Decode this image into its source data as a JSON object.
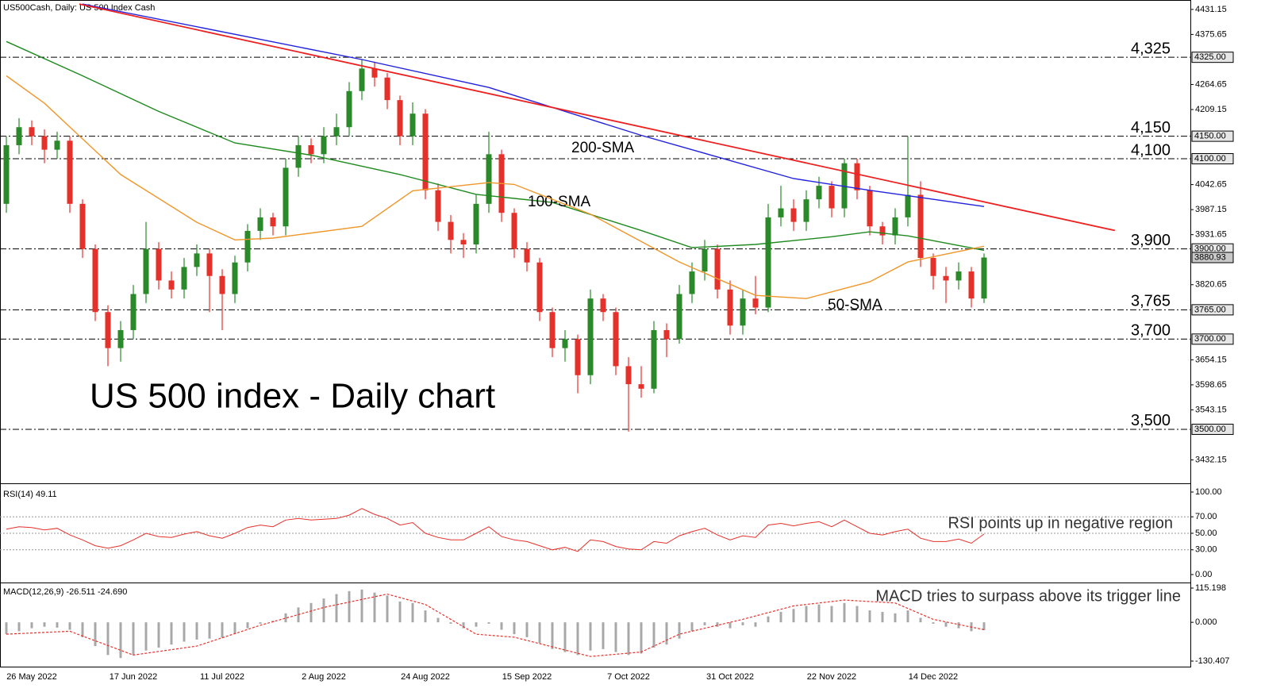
{
  "chart_data": [
    {
      "type": "candlestick",
      "title": "US500Cash, Daily:  US 500 Index Cash",
      "annotation": "US 500 index - Daily chart",
      "categories": [
        null,
        null,
        "26 May 2022",
        null,
        null,
        null,
        null,
        null,
        null,
        null,
        "17 Jun 2022",
        null,
        null,
        null,
        null,
        null,
        null,
        "11 Jul 2022",
        null,
        null,
        null,
        null,
        null,
        null,
        null,
        "2 Aug 2022",
        null,
        null,
        null,
        null,
        null,
        null,
        null,
        "24 Aug 2022",
        null,
        null,
        null,
        null,
        null,
        null,
        null,
        "15 Sep 2022",
        null,
        null,
        null,
        null,
        null,
        null,
        null,
        "7 Oct 2022",
        null,
        null,
        null,
        null,
        null,
        null,
        null,
        "31 Oct 2022",
        null,
        null,
        null,
        null,
        null,
        null,
        null,
        "22 Nov 2022",
        null,
        null,
        null,
        null,
        null,
        null,
        null,
        "14 Dec 2022",
        null,
        null,
        null,
        null
      ],
      "open": [
        4000,
        4130,
        4170,
        4150,
        4120,
        4140,
        4000,
        3900,
        3760,
        3680,
        3720,
        3800,
        3900,
        3830,
        3810,
        3860,
        3890,
        3840,
        3800,
        3870,
        3940,
        3970,
        3950,
        4080,
        4130,
        4110,
        4150,
        4170,
        4250,
        4300,
        4280,
        4230,
        4150,
        4200,
        4030,
        3960,
        3920,
        3910,
        4000,
        4110,
        3980,
        3900,
        3870,
        3760,
        3680,
        3700,
        3620,
        3790,
        3760,
        3640,
        3600,
        3590,
        3720,
        3700,
        3800,
        3850,
        3900,
        3810,
        3730,
        3790,
        3770,
        3970,
        3990,
        3960,
        4010,
        4040,
        3990,
        4090,
        4030,
        3950,
        3930,
        3970,
        4020,
        3880,
        3840,
        3830,
        3850,
        3790
      ],
      "high": [
        4150,
        4190,
        4185,
        4165,
        4160,
        4150,
        4010,
        3910,
        3775,
        3740,
        3820,
        3960,
        3915,
        3850,
        3880,
        3910,
        3900,
        3855,
        3885,
        3955,
        3990,
        3980,
        4100,
        4150,
        4145,
        4170,
        4200,
        4270,
        4320,
        4315,
        4290,
        4240,
        4225,
        4210,
        4045,
        3975,
        3935,
        4020,
        4160,
        4120,
        3990,
        3915,
        3880,
        3770,
        3720,
        3710,
        3810,
        3800,
        3770,
        3660,
        3640,
        3740,
        3735,
        3820,
        3870,
        3920,
        3910,
        3830,
        3810,
        3840,
        4000,
        4040,
        4010,
        4030,
        4060,
        4050,
        4100,
        4100,
        4040,
        3960,
        3990,
        4150,
        4050,
        3890,
        3860,
        3870,
        3860,
        3890
      ],
      "low": [
        3980,
        4110,
        4130,
        4090,
        4100,
        3980,
        3880,
        3740,
        3640,
        3650,
        3700,
        3780,
        3810,
        3790,
        3790,
        3840,
        3760,
        3720,
        3780,
        3850,
        3920,
        3930,
        3930,
        4060,
        4090,
        4090,
        4130,
        4150,
        4230,
        4260,
        4210,
        4130,
        4130,
        4010,
        3940,
        3890,
        3880,
        3890,
        3980,
        3960,
        3880,
        3850,
        3740,
        3660,
        3650,
        3580,
        3600,
        3740,
        3620,
        3495,
        3570,
        3580,
        3660,
        3690,
        3780,
        3830,
        3790,
        3710,
        3710,
        3755,
        3760,
        3950,
        3940,
        3940,
        3990,
        3970,
        3970,
        4010,
        3930,
        3910,
        3910,
        3950,
        3860,
        3810,
        3780,
        3810,
        3770,
        3780
      ],
      "close": [
        4130,
        4170,
        4150,
        4120,
        4140,
        4000,
        3900,
        3760,
        3680,
        3720,
        3800,
        3900,
        3830,
        3810,
        3860,
        3890,
        3840,
        3800,
        3870,
        3940,
        3970,
        3950,
        4080,
        4130,
        4110,
        4150,
        4170,
        4250,
        4300,
        4280,
        4230,
        4150,
        4200,
        4030,
        3960,
        3920,
        3910,
        4000,
        4110,
        3980,
        3900,
        3870,
        3760,
        3680,
        3700,
        3620,
        3790,
        3760,
        3640,
        3600,
        3590,
        3720,
        3700,
        3800,
        3850,
        3900,
        3810,
        3730,
        3790,
        3770,
        3970,
        3990,
        3960,
        4010,
        4040,
        3990,
        4090,
        4030,
        3950,
        3930,
        3970,
        4020,
        3880,
        3840,
        3830,
        3850,
        3790,
        3880.93
      ],
      "up_color": "#2a8a2a",
      "down_color": "#e8302a",
      "lines": [
        {
          "name": "200-SMA",
          "color": "#2020e0",
          "x": [
            6,
            28,
            38,
            50,
            62,
            68,
            77
          ],
          "values": [
            4443,
            4320,
            4258,
            4152,
            4056,
            4030,
            3994
          ]
        },
        {
          "name": "100-SMA",
          "color": "#1e8a1e",
          "x": [
            0,
            6,
            12,
            18,
            24,
            31,
            37,
            43,
            50,
            54,
            59,
            65,
            68,
            71,
            77
          ],
          "values": [
            4360,
            4284,
            4205,
            4135,
            4108,
            4065,
            4021,
            4003,
            3941,
            3903,
            3910,
            3927,
            3938,
            3929,
            3897
          ]
        },
        {
          "name": "50-SMA",
          "color": "#f0962a",
          "x": [
            0,
            3,
            9,
            15,
            18,
            21,
            28,
            32,
            38,
            40,
            46,
            53,
            59,
            63,
            68,
            71,
            77
          ],
          "values": [
            4284,
            4223,
            4065,
            3959,
            3920,
            3924,
            3950,
            4029,
            4047,
            4043,
            3977,
            3871,
            3797,
            3790,
            3827,
            3871,
            3906
          ]
        }
      ],
      "trendline": {
        "color": "#ee2020",
        "x": [
          5.75,
          87.3
        ],
        "values": [
          4443,
          3941
        ]
      },
      "levels": [
        {
          "value": 4325,
          "label": "4,325",
          "color": "#ee2020"
        },
        {
          "value": 4150,
          "label": "4,150",
          "color": "#ee2020"
        },
        {
          "value": 4100,
          "label": "4,100",
          "color": "#ee2020"
        },
        {
          "value": 3900,
          "label": "3,900",
          "color": "#ee2020"
        },
        {
          "value": 3765,
          "label": "3,765",
          "color": "#2a8a2a"
        },
        {
          "value": 3700,
          "label": "3,700",
          "color": "#2a8a2a"
        },
        {
          "value": 3500,
          "label": "3,500",
          "color": "#2a8a2a"
        }
      ],
      "ylim": [
        3382,
        4452
      ],
      "yticks": [
        4431.15,
        4375.65,
        4264.65,
        4209.15,
        4042.65,
        3987.15,
        3931.65,
        3820.65,
        3654.15,
        3598.65,
        3543.15,
        3432.15
      ],
      "marked_ticks": [
        {
          "value": 4325,
          "label": "4325.00"
        },
        {
          "value": 4150,
          "label": "4150.00"
        },
        {
          "value": 4100,
          "label": "4100.00"
        },
        {
          "value": 3900,
          "label": "3900.00"
        },
        {
          "value": 3765,
          "label": "3765.00"
        },
        {
          "value": 3700,
          "label": "3700.00"
        },
        {
          "value": 3500,
          "label": "3500.00"
        }
      ],
      "price_tick": 3880.93
    },
    {
      "type": "line",
      "title": "RSI(14) 49.11",
      "annotation": "RSI points up in negative region",
      "series": [
        {
          "color": "#e8302a",
          "values": [
            55,
            58,
            57,
            54,
            56,
            48,
            42,
            35,
            32,
            35,
            42,
            50,
            46,
            45,
            49,
            52,
            47,
            44,
            50,
            57,
            60,
            58,
            66,
            68,
            66,
            67,
            68,
            72,
            80,
            73,
            68,
            60,
            63,
            50,
            45,
            42,
            42,
            50,
            58,
            46,
            42,
            40,
            35,
            30,
            33,
            28,
            42,
            40,
            34,
            31,
            30,
            40,
            38,
            47,
            52,
            56,
            48,
            42,
            47,
            45,
            60,
            62,
            59,
            62,
            64,
            58,
            66,
            58,
            50,
            48,
            52,
            55,
            44,
            40,
            40,
            43,
            38,
            49.11
          ]
        }
      ],
      "levels": [
        70,
        50,
        30
      ],
      "ylim": [
        -8.7,
        107.7
      ],
      "yticks": [
        {
          "value": 100,
          "label": "100.00"
        },
        {
          "value": 70,
          "label": "70.00"
        },
        {
          "value": 50,
          "label": "50.00"
        },
        {
          "value": 30,
          "label": "30.00"
        },
        {
          "value": 0,
          "label": "0.00"
        }
      ]
    },
    {
      "type": "bar",
      "title": "MACD(12,26,9) -26.511 -24.690",
      "annotation": "MACD tries to surpass above its trigger line",
      "color": "#a8a8a8",
      "values": [
        -40,
        -30,
        -20,
        -15,
        -18,
        -25,
        -50,
        -80,
        -110,
        -120,
        -110,
        -95,
        -85,
        -75,
        -65,
        -58,
        -55,
        -52,
        -40,
        -20,
        -5,
        5,
        30,
        50,
        65,
        80,
        95,
        105,
        110,
        100,
        90,
        70,
        65,
        40,
        15,
        -5,
        -20,
        -15,
        -5,
        -25,
        -40,
        -50,
        -70,
        -90,
        -100,
        -110,
        -95,
        -90,
        -100,
        -110,
        -105,
        -85,
        -75,
        -55,
        -30,
        -10,
        -15,
        -20,
        -10,
        -15,
        20,
        35,
        45,
        55,
        60,
        55,
        65,
        55,
        40,
        35,
        30,
        40,
        15,
        -5,
        -15,
        -20,
        -30,
        -26.511
      ],
      "signal": {
        "color": "#e8302a",
        "x": [
          0,
          5,
          10,
          15,
          20,
          25,
          30,
          33,
          37,
          40,
          46,
          50,
          53,
          58,
          62,
          66,
          70,
          73,
          77
        ],
        "values": [
          -40,
          -30,
          -110,
          -80,
          -10,
          50,
          95,
          60,
          -40,
          -50,
          -115,
          -100,
          -40,
          10,
          55,
          75,
          65,
          10,
          -24.69
        ]
      },
      "ylim": [
        -149.1,
        131.2
      ],
      "yticks": [
        {
          "value": 115.198,
          "label": "115.198"
        },
        {
          "value": 0,
          "label": "0.000"
        },
        {
          "value": -130.407,
          "label": "-130.407"
        }
      ]
    }
  ]
}
